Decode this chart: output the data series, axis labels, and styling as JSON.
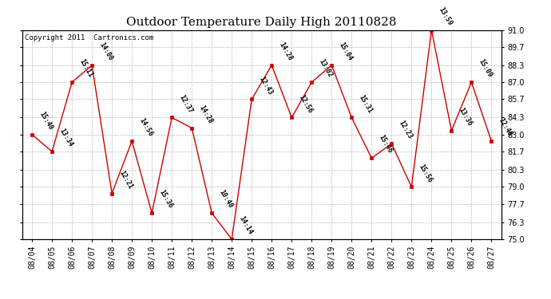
{
  "title": "Outdoor Temperature Daily High 20110828",
  "copyright_text": "Copyright 2011  Cartronics.com",
  "dates": [
    "08/04",
    "08/05",
    "08/06",
    "08/07",
    "08/08",
    "08/09",
    "08/10",
    "08/11",
    "08/12",
    "08/13",
    "08/14",
    "08/15",
    "08/16",
    "08/17",
    "08/18",
    "08/19",
    "08/20",
    "08/21",
    "08/22",
    "08/23",
    "08/24",
    "08/25",
    "08/26",
    "08/27"
  ],
  "temps": [
    83.0,
    81.7,
    87.0,
    88.3,
    78.5,
    82.5,
    77.0,
    84.3,
    83.5,
    77.0,
    75.0,
    85.7,
    88.3,
    84.3,
    87.0,
    88.3,
    84.3,
    81.2,
    82.3,
    79.0,
    91.0,
    83.3,
    87.0,
    82.5
  ],
  "time_labels": [
    "15:40",
    "13:34",
    "15:11",
    "14:00",
    "12:21",
    "14:56",
    "15:36",
    "12:37",
    "14:28",
    "10:40",
    "14:14",
    "12:43",
    "14:28",
    "12:56",
    "13:02",
    "15:04",
    "15:31",
    "15:46",
    "12:23",
    "15:56",
    "13:59",
    "13:36",
    "15:09",
    "12:48"
  ],
  "ylim": [
    75.0,
    91.0
  ],
  "yticks": [
    75.0,
    76.3,
    77.7,
    79.0,
    80.3,
    81.7,
    83.0,
    84.3,
    85.7,
    87.0,
    88.3,
    89.7,
    91.0
  ],
  "line_color": "#cc0000",
  "marker_color": "#cc0000",
  "grid_color": "#bbbbbb",
  "bg_color": "#ffffff",
  "title_fontsize": 11,
  "copyright_fontsize": 6.5,
  "label_fontsize": 6,
  "tick_fontsize": 7,
  "annotation_rotation": -60
}
